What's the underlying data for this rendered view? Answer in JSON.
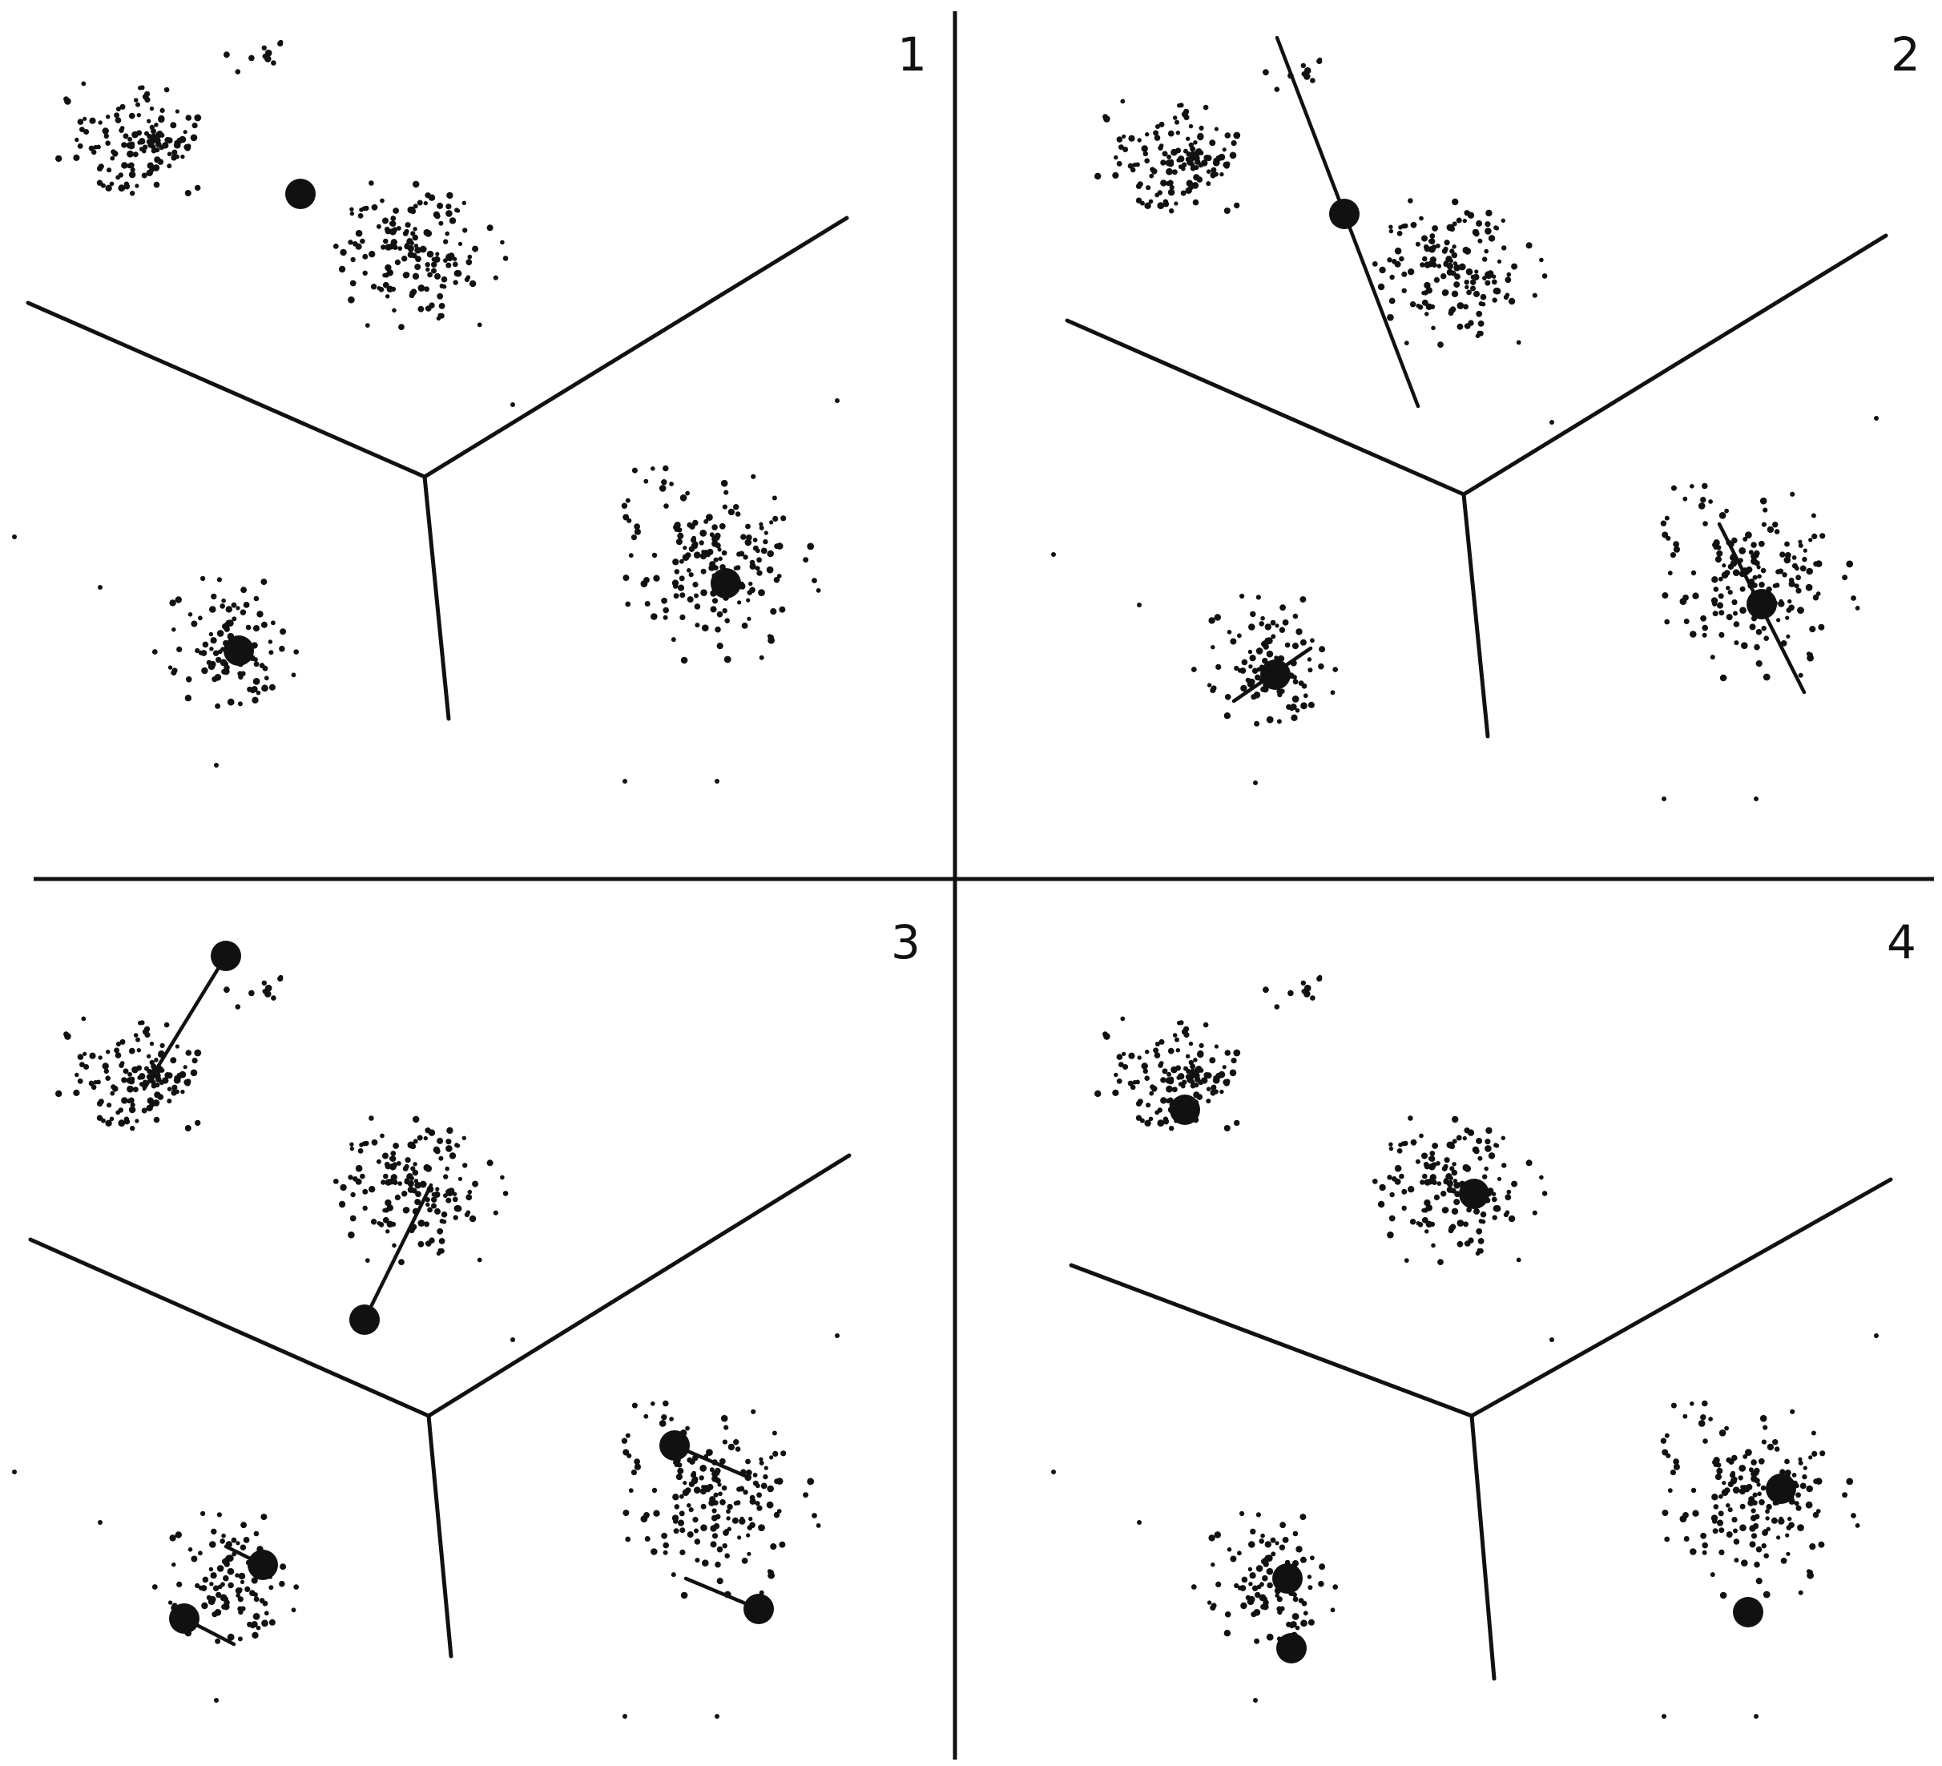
{
  "colors": {
    "background": "#ffffff",
    "ink": "#111111"
  },
  "panels": [
    {
      "number": "1"
    },
    {
      "number": "2"
    },
    {
      "number": "3"
    },
    {
      "number": "4"
    }
  ]
}
